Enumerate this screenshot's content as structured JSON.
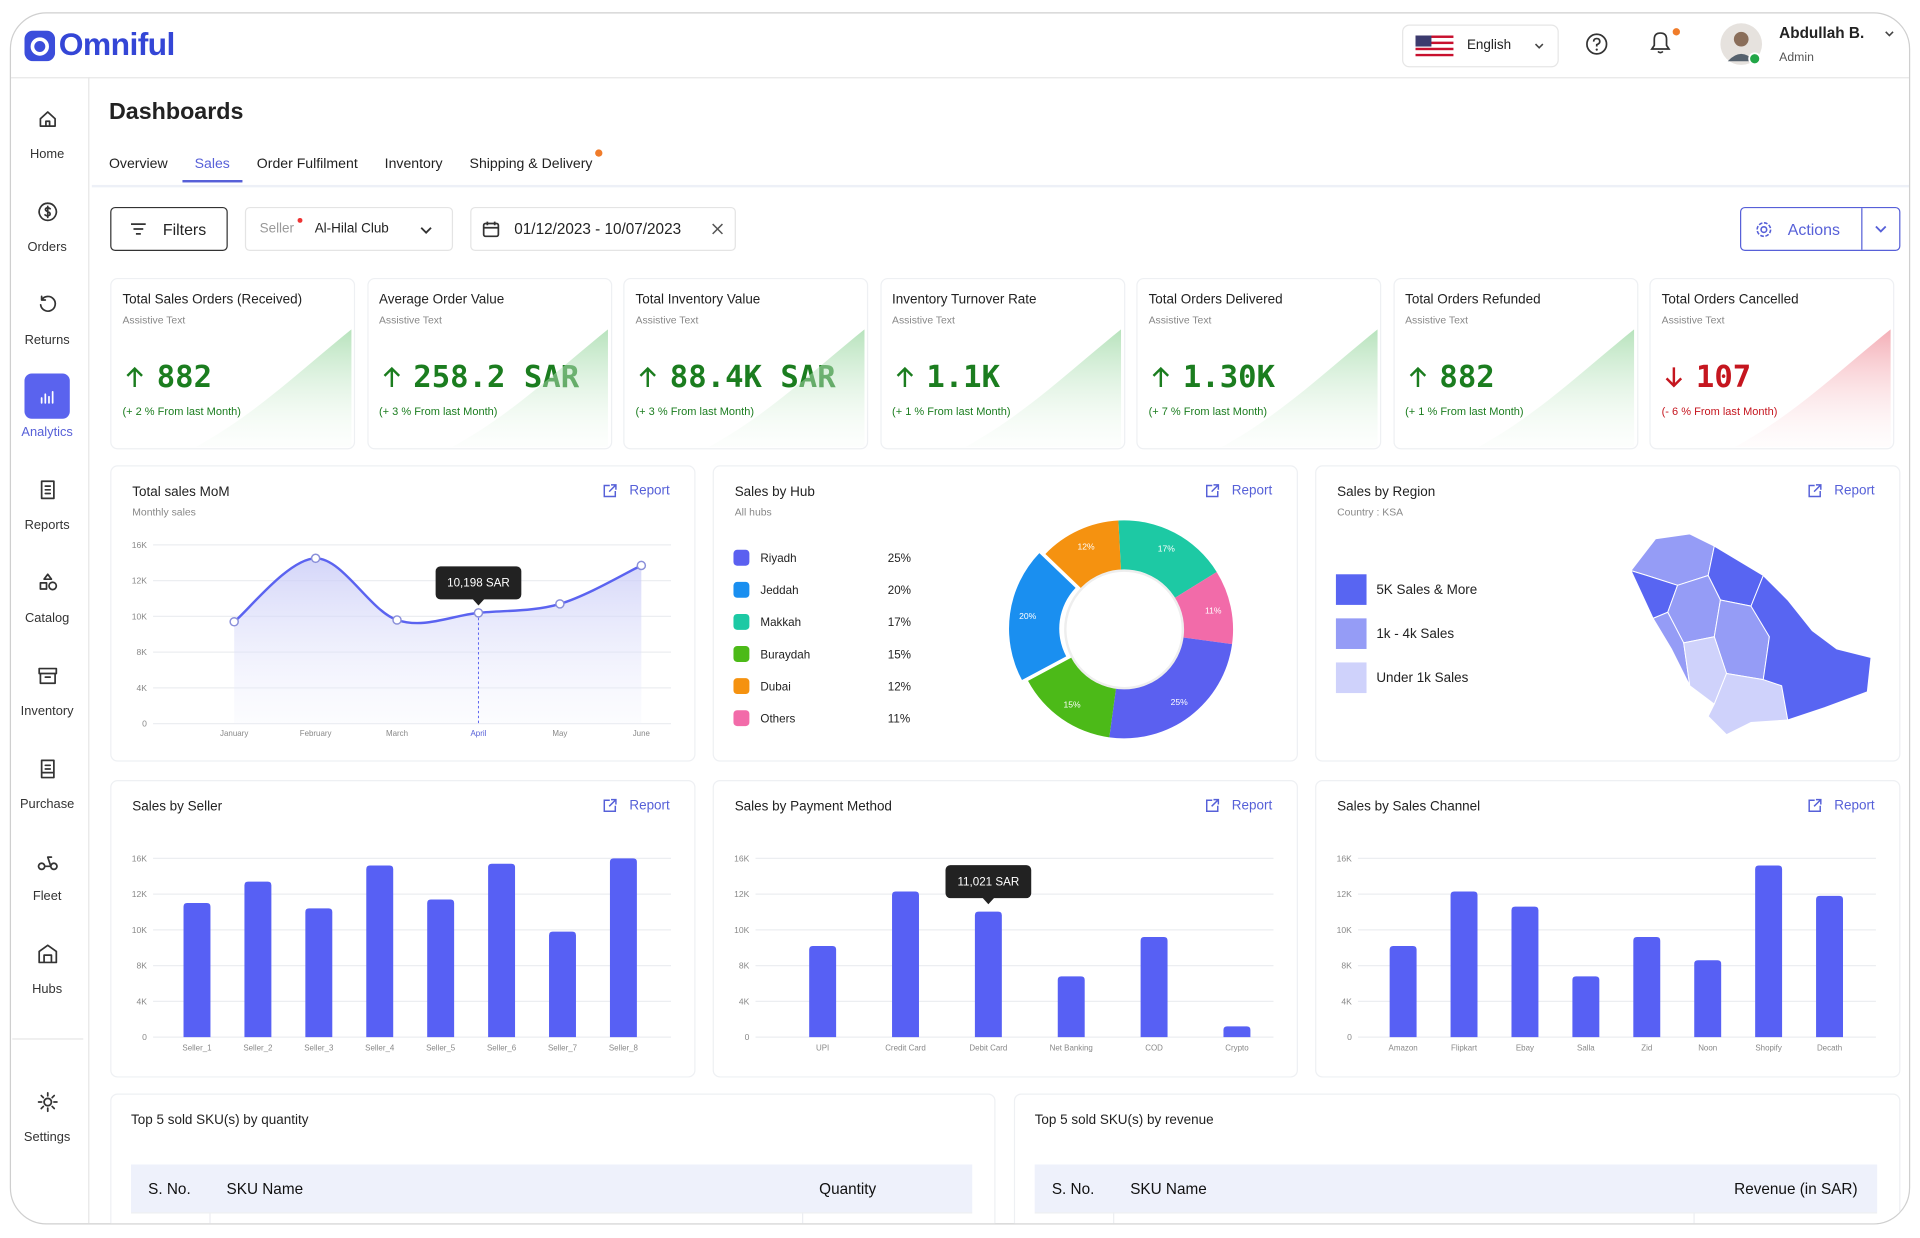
{
  "header": {
    "logo": "Omniful",
    "language": "English",
    "user_name": "Abdullah B.",
    "user_role": "Admin"
  },
  "sidebar": [
    {
      "label": "Home"
    },
    {
      "label": "Orders"
    },
    {
      "label": "Returns"
    },
    {
      "label": "Analytics",
      "active": true
    },
    {
      "label": "Reports"
    },
    {
      "label": "Catalog"
    },
    {
      "label": "Inventory"
    },
    {
      "label": "Purchase"
    },
    {
      "label": "Fleet"
    },
    {
      "label": "Hubs"
    },
    {
      "label": "Settings"
    }
  ],
  "page_title": "Dashboards",
  "tabs": [
    {
      "label": "Overview"
    },
    {
      "label": "Sales",
      "active": true
    },
    {
      "label": "Order Fulfilment"
    },
    {
      "label": "Inventory"
    },
    {
      "label": "Shipping & Delivery",
      "badge": true
    }
  ],
  "filters": {
    "button": "Filters",
    "seller_label": "Seller",
    "seller": "Al-Hilal Club",
    "date_range": "01/12/2023 - 10/07/2023",
    "actions": "Actions"
  },
  "kpis": [
    {
      "title": "Total Sales Orders (Received)",
      "subtitle": "Assistive Text",
      "value": "882",
      "change": "(+ 2 % From last Month)",
      "trend": "up"
    },
    {
      "title": "Average Order Value",
      "subtitle": "Assistive Text",
      "value": "258.2 SAR",
      "change": "(+ 3 % From last Month)",
      "trend": "up"
    },
    {
      "title": "Total Inventory Value",
      "subtitle": "Assistive Text",
      "value": "88.4K SAR",
      "change": "(+ 3 % From last Month)",
      "trend": "up"
    },
    {
      "title": "Inventory Turnover Rate",
      "subtitle": "Assistive Text",
      "value": "1.1K",
      "change": "(+ 1 % From last Month)",
      "trend": "up"
    },
    {
      "title": "Total Orders Delivered",
      "subtitle": "Assistive Text",
      "value": "1.30K",
      "change": "(+ 7 % From last Month)",
      "trend": "up"
    },
    {
      "title": "Total Orders Refunded",
      "subtitle": "Assistive Text",
      "value": "882",
      "change": "(+ 1 % From last Month)",
      "trend": "up"
    },
    {
      "title": "Total Orders Cancelled",
      "subtitle": "Assistive Text",
      "value": "107",
      "change": "(- 6 % From last Month)",
      "trend": "down"
    }
  ],
  "charts": {
    "mom": {
      "type": "line",
      "title": "Total sales MoM",
      "subtitle": "Monthly sales",
      "report": "Report",
      "categories": [
        "January",
        "February",
        "March",
        "April",
        "May",
        "June"
      ],
      "values": [
        9700,
        14500,
        9800,
        10198,
        10700,
        13700
      ],
      "value_labels": [
        null,
        null,
        null,
        "10,198 SAR",
        null,
        null
      ],
      "color": "#5b63f0",
      "ylim": [
        0,
        16000
      ],
      "yticks": [
        0,
        {
          "value": 4000,
          "label": "4K"
        },
        {
          "value": 8000,
          "label": "8K"
        },
        {
          "value": 10000,
          "label": "10K"
        },
        {
          "value": 12000,
          "label": "12K"
        },
        {
          "value": 16000,
          "label": "16K"
        }
      ],
      "grid": true
    },
    "hub": {
      "type": "donut",
      "title": "Sales by Hub",
      "subtitle": "All hubs",
      "report": "Report",
      "categories": [
        "Riyadh",
        "Jeddah",
        "Makkah",
        "Buraydah",
        "Dubai",
        "Others"
      ],
      "values": [
        25,
        20,
        17,
        15,
        12,
        11
      ],
      "value_labels": [
        "25%",
        "20%",
        "17%",
        "15%",
        "12%",
        "11%"
      ],
      "colors": [
        "#5b60f0",
        "#1a8ff0",
        "#1dc9a4",
        "#4cba18",
        "#f59210",
        "#f26ba9"
      ]
    },
    "region": {
      "type": "choropleth",
      "title": "Sales by Region",
      "subtitle": "Country : KSA",
      "report": "Report",
      "legend": [
        {
          "label": "5K Sales & More",
          "color": "#5865f2"
        },
        {
          "label": "1k - 4k Sales",
          "color": "#959cf6"
        },
        {
          "label": "Under 1k Sales",
          "color": "#cfd2fb"
        }
      ]
    },
    "seller": {
      "type": "bar",
      "title": "Sales by Seller",
      "report": "Report",
      "categories": [
        "Seller_1",
        "Seller_2",
        "Seller_3",
        "Seller_4",
        "Seller_5",
        "Seller_6",
        "Seller_7",
        "Seller_8"
      ],
      "values": [
        11500,
        13400,
        11200,
        15200,
        11700,
        15400,
        9900,
        16000
      ],
      "color": "#5760f4",
      "ylim": [
        0,
        16000
      ],
      "yticks": [
        0,
        {
          "value": 4000,
          "label": "4K"
        },
        {
          "value": 8000,
          "label": "8K"
        },
        {
          "value": 10000,
          "label": "10K"
        },
        {
          "value": 12000,
          "label": "12K"
        },
        {
          "value": 16000,
          "label": "16K"
        }
      ],
      "grid": true
    },
    "payment": {
      "type": "bar",
      "title": "Sales by Payment Method",
      "report": "Report",
      "categories": [
        "UPI",
        "Credit Card",
        "Debit Card",
        "Net Banking",
        "COD",
        "Crypto"
      ],
      "values": [
        9100,
        12300,
        11021,
        6800,
        9600,
        1200
      ],
      "value_labels": [
        null,
        null,
        "11,021 SAR",
        null,
        null,
        null
      ],
      "color": "#5760f4",
      "ylim": [
        0,
        16000
      ],
      "yticks": [
        0,
        {
          "value": 4000,
          "label": "4K"
        },
        {
          "value": 8000,
          "label": "8K"
        },
        {
          "value": 10000,
          "label": "10K"
        },
        {
          "value": 12000,
          "label": "12K"
        },
        {
          "value": 16000,
          "label": "16K"
        }
      ],
      "grid": true
    },
    "channel": {
      "type": "bar",
      "title": "Sales by Sales Channel",
      "report": "Report",
      "categories": [
        "Amazon",
        "Flipkart",
        "Ebay",
        "Salla",
        "Zid",
        "Noon",
        "Shopify",
        "Decath"
      ],
      "values": [
        9100,
        12300,
        11300,
        6800,
        9600,
        8300,
        15200,
        11900
      ],
      "color": "#5760f4",
      "ylim": [
        0,
        16000
      ],
      "yticks": [
        0,
        {
          "value": 4000,
          "label": "4K"
        },
        {
          "value": 8000,
          "label": "8K"
        },
        {
          "value": 10000,
          "label": "10K"
        },
        {
          "value": 12000,
          "label": "12K"
        },
        {
          "value": 16000,
          "label": "16K"
        }
      ],
      "grid": true
    }
  },
  "tables": [
    {
      "title": "Top 5 sold SKU(s) by quantity",
      "columns": [
        "S. No.",
        "SKU Name",
        "Quantity"
      ]
    },
    {
      "title": "Top 5 sold SKU(s) by revenue",
      "columns": [
        "S. No.",
        "SKU Name",
        "Revenue (in SAR)"
      ]
    }
  ]
}
